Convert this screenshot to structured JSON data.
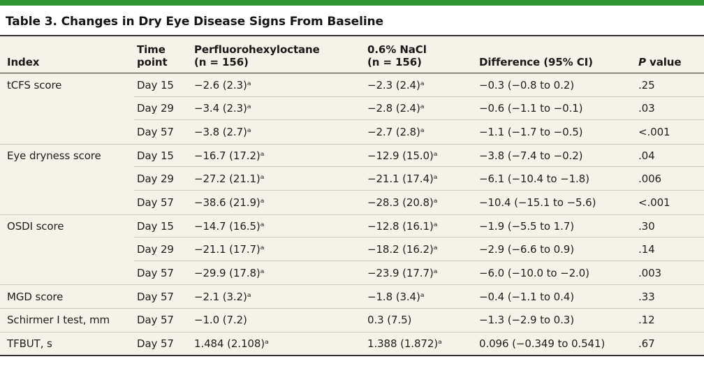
{
  "title": "Table 3. Changes in Dry Eye Disease Signs From Baseline",
  "colors": {
    "accent_green": "#2E9532",
    "table_background": "#F5F3E9",
    "heavy_rule": "#2F2F2F",
    "row_separator": "#CDCABD"
  },
  "table": {
    "header": {
      "index": "Index",
      "time": "Time\npoint",
      "drug": "Perfluorohexyloctane\n(n = 156)",
      "nacl": "0.6% NaCl\n(n = 156)",
      "diff": "Difference (95% CI)",
      "p_italic": "P",
      "p_rest": " value"
    },
    "rows": [
      {
        "index": "tCFS score",
        "time": "Day 15",
        "drug": "−2.6 (2.3)ᵃ",
        "nacl": "−2.3 (2.4)ᵃ",
        "diff": "−0.3 (−0.8 to 0.2)",
        "p": ".25"
      },
      {
        "index": "",
        "time": "Day 29",
        "drug": "−3.4 (2.3)ᵃ",
        "nacl": "−2.8 (2.4)ᵃ",
        "diff": "−0.6 (−1.1 to −0.1)",
        "p": ".03"
      },
      {
        "index": "",
        "time": "Day 57",
        "drug": "−3.8 (2.7)ᵃ",
        "nacl": "−2.7 (2.8)ᵃ",
        "diff": "−1.1 (−1.7 to −0.5)",
        "p": "<.001"
      },
      {
        "index": "Eye dryness score",
        "time": "Day 15",
        "drug": "−16.7 (17.2)ᵃ",
        "nacl": "−12.9 (15.0)ᵃ",
        "diff": "−3.8 (−7.4 to −0.2)",
        "p": ".04"
      },
      {
        "index": "",
        "time": "Day 29",
        "drug": "−27.2 (21.1)ᵃ",
        "nacl": "−21.1 (17.4)ᵃ",
        "diff": "−6.1 (−10.4 to −1.8)",
        "p": ".006"
      },
      {
        "index": "",
        "time": "Day 57",
        "drug": "−38.6 (21.9)ᵃ",
        "nacl": "−28.3 (20.8)ᵃ",
        "diff": "−10.4 (−15.1 to −5.6)",
        "p": "<.001"
      },
      {
        "index": "OSDI score",
        "time": "Day 15",
        "drug": "−14.7 (16.5)ᵃ",
        "nacl": "−12.8 (16.1)ᵃ",
        "diff": "−1.9 (−5.5 to 1.7)",
        "p": ".30"
      },
      {
        "index": "",
        "time": "Day 29",
        "drug": "−21.1 (17.7)ᵃ",
        "nacl": "−18.2 (16.2)ᵃ",
        "diff": "−2.9 (−6.6 to 0.9)",
        "p": ".14"
      },
      {
        "index": "",
        "time": "Day 57",
        "drug": "−29.9 (17.8)ᵃ",
        "nacl": "−23.9 (17.7)ᵃ",
        "diff": "−6.0 (−10.0 to −2.0)",
        "p": ".003"
      },
      {
        "index": "MGD score",
        "time": "Day 57",
        "drug": "−2.1 (3.2)ᵃ",
        "nacl": "−1.8 (3.4)ᵃ",
        "diff": "−0.4 (−1.1 to 0.4)",
        "p": ".33"
      },
      {
        "index": "Schirmer I test, mm",
        "time": "Day 57",
        "drug": "−1.0 (7.2)",
        "nacl": "0.3 (7.5)",
        "diff": "−1.3 (−2.9 to 0.3)",
        "p": ".12"
      },
      {
        "index": "TFBUT, s",
        "time": "Day 57",
        "drug": "1.484 (2.108)ᵃ",
        "nacl": "1.388 (1.872)ᵃ",
        "diff": "0.096 (−0.349 to 0.541)",
        "p": ".67"
      }
    ]
  }
}
